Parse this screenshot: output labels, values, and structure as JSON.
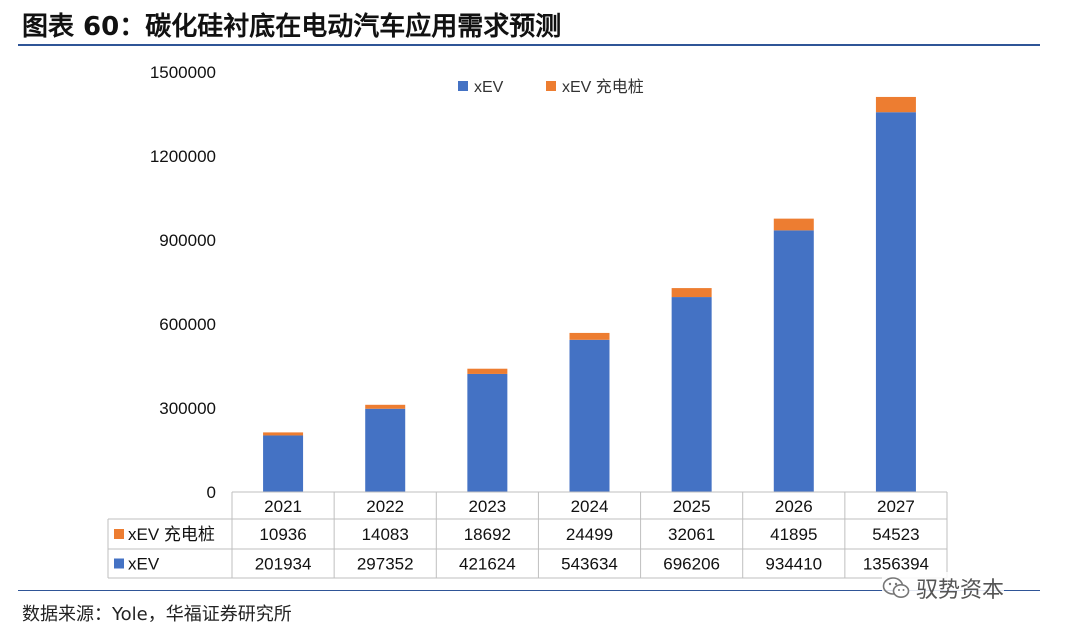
{
  "title": "图表 60：碳化硅衬底在电动汽车应用需求预测",
  "source": "数据来源：Yole，华福证券研究所",
  "watermark": {
    "text": "驭势资本",
    "icon": "wechat-icon"
  },
  "colors": {
    "xev": "#4472c4",
    "charging": "#ed7d31",
    "rule": "#2f5597",
    "table_border": "#bfbfbf"
  },
  "chart_data": {
    "type": "bar",
    "stacked": true,
    "categories": [
      "2021",
      "2022",
      "2023",
      "2024",
      "2025",
      "2026",
      "2027"
    ],
    "series": [
      {
        "name": "xEV",
        "values": [
          201934,
          297352,
          421624,
          543634,
          696206,
          934410,
          1356394
        ]
      },
      {
        "name": "xEV 充电桩",
        "values": [
          10936,
          14083,
          18692,
          24499,
          32061,
          41895,
          54523
        ]
      }
    ],
    "ylim": [
      0,
      1500000
    ],
    "yticks": [
      "0",
      "300000",
      "600000",
      "900000",
      "1200000",
      "1500000"
    ],
    "legend": "top",
    "data_table": true,
    "grid": false
  }
}
